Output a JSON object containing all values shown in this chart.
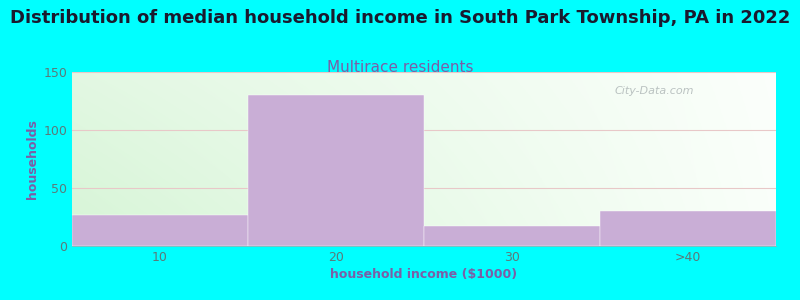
{
  "title": "Distribution of median household income in South Park Township, PA in 2022",
  "subtitle": "Multirace residents",
  "xlabel": "household income ($1000)",
  "ylabel": "households",
  "bg_color": "#00FFFF",
  "bar_color": "#c9aed6",
  "categories": [
    "10",
    "20",
    "30",
    ">40"
  ],
  "values": [
    27,
    130,
    17,
    30
  ],
  "ylim": [
    0,
    150
  ],
  "yticks": [
    0,
    50,
    100,
    150
  ],
  "title_fontsize": 13,
  "title_color": "#1a1a2e",
  "subtitle_fontsize": 11,
  "subtitle_color": "#7b5ea7",
  "axis_label_color": "#7b5ea7",
  "tick_color": "#5a7a7a",
  "grid_color": "#e8c8c8",
  "watermark_text": "City-Data.com",
  "watermark_color": "#b0b8b8",
  "gradient_left": "#d8f0d8",
  "gradient_right": "#f8fff8"
}
